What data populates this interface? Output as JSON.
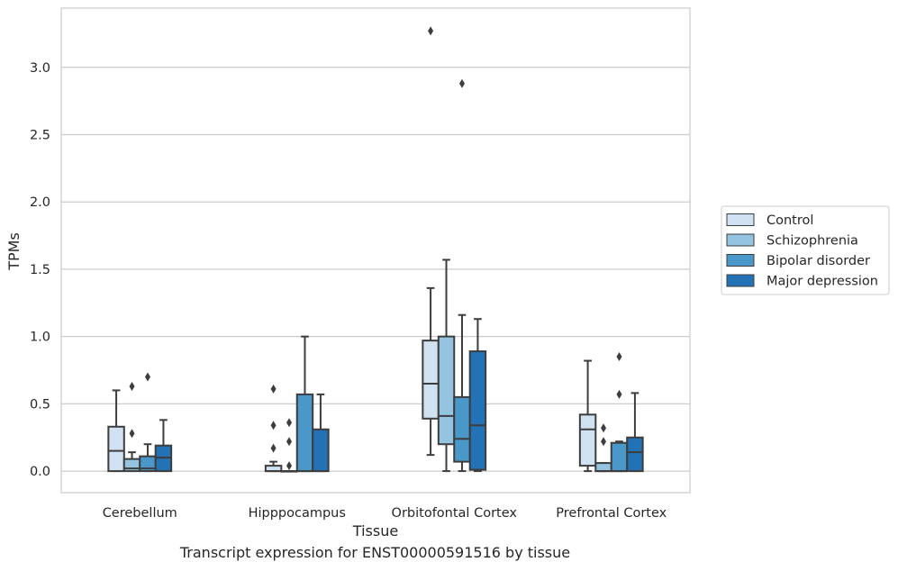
{
  "caption": "Transcript expression for ENST00000591516 by tissue",
  "chart_data": {
    "type": "box",
    "xlabel": "Tissue",
    "ylabel": "TPMs",
    "ylim": [
      -0.16,
      3.44
    ],
    "yticks": [
      "0.0",
      "0.5",
      "1.0",
      "1.5",
      "2.0",
      "2.5",
      "3.0"
    ],
    "grid": true,
    "legend_position": "right",
    "categories": [
      "Cerebellum",
      "Hipppocampus",
      "Orbitofontal Cortex",
      "Prefrontal Cortex"
    ],
    "series": [
      {
        "name": "Control",
        "color": "#d0e1f2",
        "boxes": [
          {
            "whislo": 0.0,
            "q1": 0.0,
            "med": 0.15,
            "q3": 0.33,
            "whishi": 0.6,
            "fliers": []
          },
          {
            "whislo": 0.0,
            "q1": 0.0,
            "med": 0.0,
            "q3": 0.04,
            "whishi": 0.07,
            "fliers": [
              0.17,
              0.34,
              0.61
            ]
          },
          {
            "whislo": 0.12,
            "q1": 0.39,
            "med": 0.65,
            "q3": 0.97,
            "whishi": 1.36,
            "fliers": [
              3.27
            ]
          },
          {
            "whislo": 0.0,
            "q1": 0.04,
            "med": 0.31,
            "q3": 0.42,
            "whishi": 0.82,
            "fliers": []
          }
        ]
      },
      {
        "name": "Schizophrenia",
        "color": "#94c4df",
        "boxes": [
          {
            "whislo": 0.0,
            "q1": 0.0,
            "med": 0.02,
            "q3": 0.09,
            "whishi": 0.14,
            "fliers": [
              0.28,
              0.63
            ]
          },
          {
            "whislo": 0.0,
            "q1": 0.0,
            "med": 0.0,
            "q3": 0.0,
            "whishi": 0.0,
            "fliers": [
              0.04,
              0.22,
              0.36
            ]
          },
          {
            "whislo": 0.0,
            "q1": 0.2,
            "med": 0.41,
            "q3": 1.0,
            "whishi": 1.57,
            "fliers": []
          },
          {
            "whislo": 0.0,
            "q1": 0.0,
            "med": 0.0,
            "q3": 0.06,
            "whishi": 0.06,
            "fliers": [
              0.22,
              0.32
            ]
          }
        ]
      },
      {
        "name": "Bipolar disorder",
        "color": "#4a98c9",
        "boxes": [
          {
            "whislo": 0.0,
            "q1": 0.0,
            "med": 0.02,
            "q3": 0.11,
            "whishi": 0.2,
            "fliers": [
              0.7
            ]
          },
          {
            "whislo": 0.0,
            "q1": 0.0,
            "med": 0.0,
            "q3": 0.57,
            "whishi": 1.0,
            "fliers": []
          },
          {
            "whislo": 0.0,
            "q1": 0.07,
            "med": 0.24,
            "q3": 0.55,
            "whishi": 1.16,
            "fliers": [
              2.88
            ]
          },
          {
            "whislo": 0.0,
            "q1": 0.0,
            "med": 0.0,
            "q3": 0.21,
            "whishi": 0.22,
            "fliers": [
              0.57,
              0.85
            ]
          }
        ]
      },
      {
        "name": "Major depression",
        "color": "#2272b5",
        "boxes": [
          {
            "whislo": 0.0,
            "q1": 0.0,
            "med": 0.1,
            "q3": 0.19,
            "whishi": 0.38,
            "fliers": []
          },
          {
            "whislo": 0.0,
            "q1": 0.0,
            "med": 0.0,
            "q3": 0.31,
            "whishi": 0.57,
            "fliers": []
          },
          {
            "whislo": 0.0,
            "q1": 0.01,
            "med": 0.34,
            "q3": 0.89,
            "whishi": 1.13,
            "fliers": []
          },
          {
            "whislo": 0.0,
            "q1": 0.0,
            "med": 0.14,
            "q3": 0.25,
            "whishi": 0.58,
            "fliers": []
          }
        ]
      }
    ]
  }
}
